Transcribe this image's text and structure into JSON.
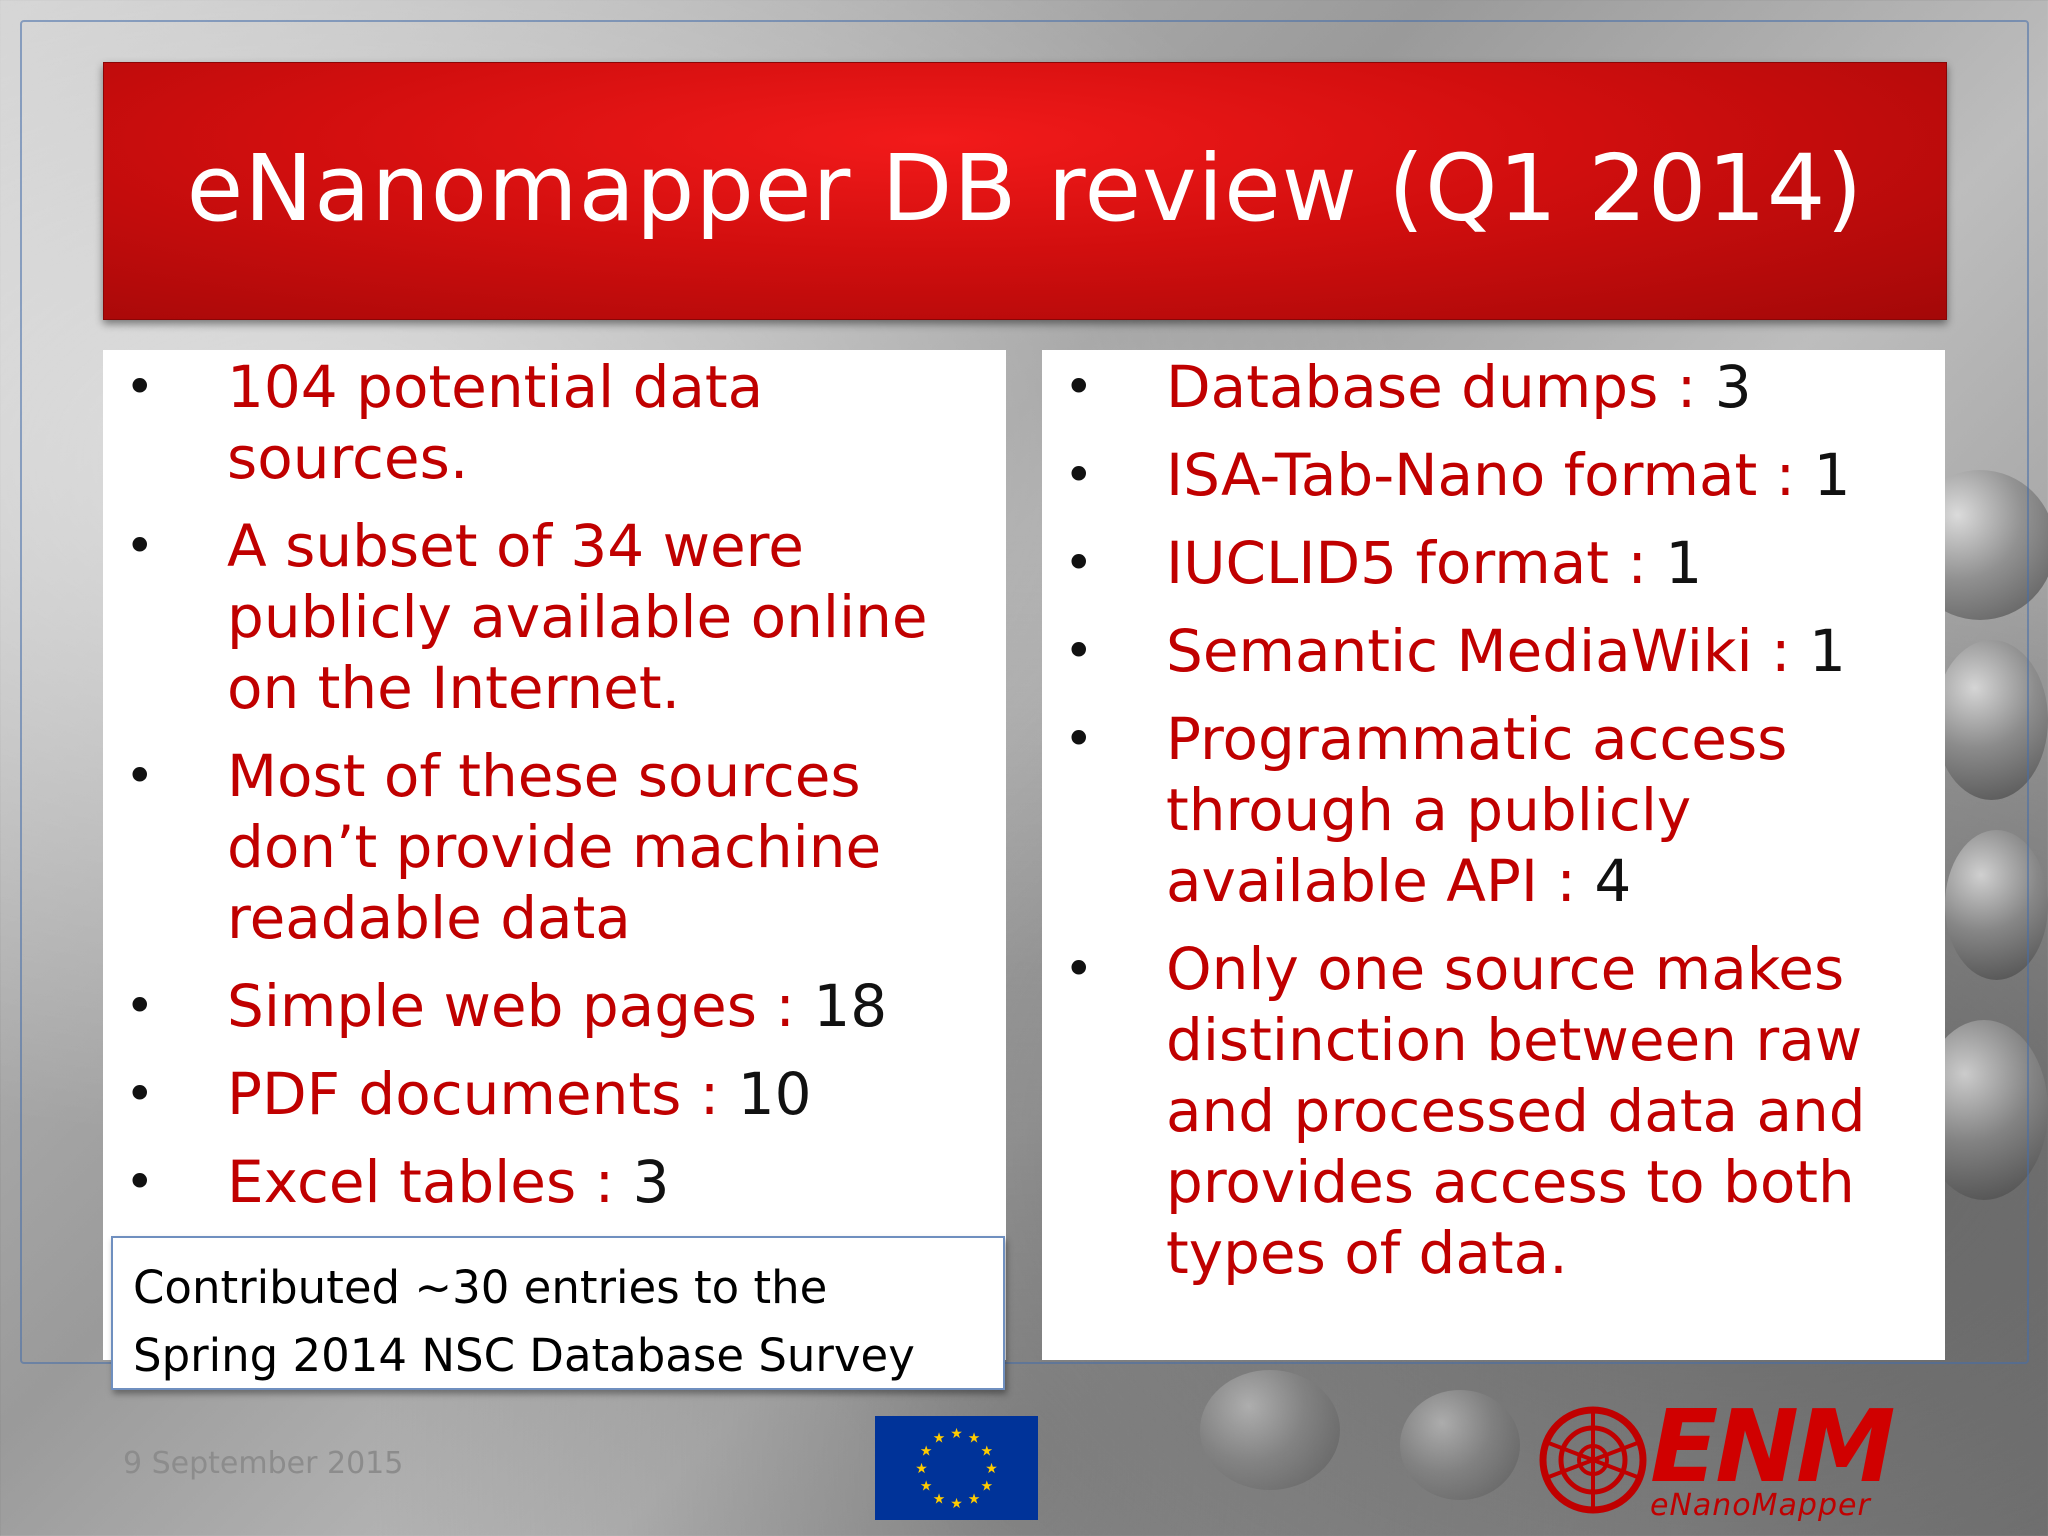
{
  "slide": {
    "title": "eNanomapper DB review (Q1 2014)",
    "date": "9 September 2015"
  },
  "left_bullets": [
    {
      "lines": [
        "104 potential data",
        "sources."
      ],
      "value": ""
    },
    {
      "lines": [
        "A subset of 34 were",
        "publicly available online",
        "on the Internet."
      ],
      "value": ""
    },
    {
      "lines": [
        "Most of these sources",
        "don’t provide machine",
        "readable data"
      ],
      "value": ""
    },
    {
      "lines": [
        "Simple web pages : "
      ],
      "value": "18"
    },
    {
      "lines": [
        "PDF documents : "
      ],
      "value": "10"
    },
    {
      "lines": [
        "Excel tables : "
      ],
      "value": "3"
    }
  ],
  "right_bullets": [
    {
      "lines": [
        "Database dumps : "
      ],
      "value": "3"
    },
    {
      "lines": [
        "ISA-Tab-Nano format : "
      ],
      "value": "1"
    },
    {
      "lines": [
        "IUCLID5 format : "
      ],
      "value": "1"
    },
    {
      "lines": [
        "Semantic MediaWiki : "
      ],
      "value": "1"
    },
    {
      "lines": [
        "Programmatic access",
        "through a publicly",
        "available API : "
      ],
      "value": "4"
    },
    {
      "lines": [
        "Only one source makes",
        "distinction between raw",
        "and processed data and",
        "provides access to both",
        "types of data."
      ],
      "value": ""
    }
  ],
  "note": {
    "line1": "Contributed ~30 entries to the",
    "line2": "Spring 2014 NSC Database Survey"
  },
  "logo": {
    "name": "ENM",
    "subtitle": "eNanoMapper"
  },
  "colors": {
    "title_red": "#d10e0e",
    "bullet_text_red": "#c00000",
    "eu_blue": "#003399",
    "eu_star": "#ffcc00"
  },
  "icons": [
    "eu-flag-icon",
    "fullerene-logo-icon",
    "bullet-icon"
  ]
}
